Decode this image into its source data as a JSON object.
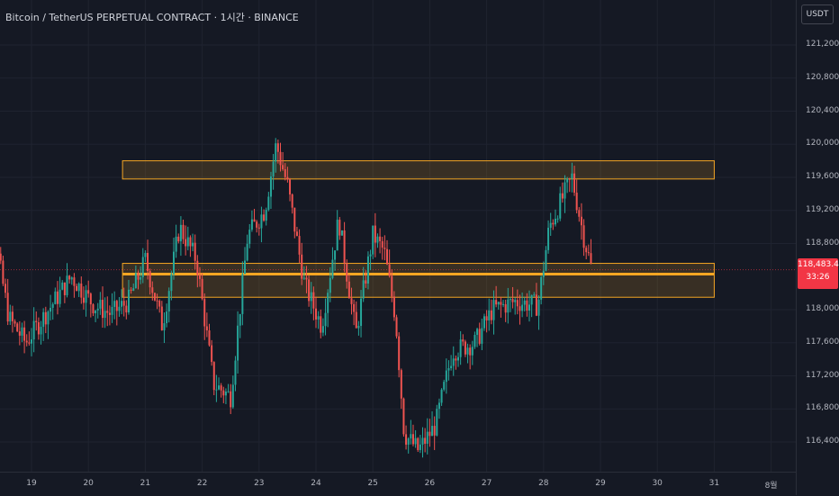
{
  "header": {
    "title": "Bitcoin / TetherUS PERPETUAL CONTRACT · 1시간 · BINANCE",
    "currency_button": "USDT"
  },
  "price_scale": {
    "labels": [
      {
        "text": "121,200.0",
        "value": 121200
      },
      {
        "text": "120,800.0",
        "value": 120800
      },
      {
        "text": "120,400.0",
        "value": 120400
      },
      {
        "text": "120,000.0",
        "value": 120000
      },
      {
        "text": "119,600.0",
        "value": 119600
      },
      {
        "text": "119,200.0",
        "value": 119200
      },
      {
        "text": "118,800.0",
        "value": 118800
      },
      {
        "text": "118,000.0",
        "value": 118000
      },
      {
        "text": "117,600.0",
        "value": 117600
      },
      {
        "text": "117,200.0",
        "value": 117200
      },
      {
        "text": "116,800.0",
        "value": 116800
      },
      {
        "text": "116,400.0",
        "value": 116400
      }
    ],
    "current_price": "118,483.4",
    "countdown": "33:26",
    "current_price_value": 118483.4
  },
  "time_scale": {
    "labels": [
      "19",
      "20",
      "21",
      "22",
      "23",
      "24",
      "25",
      "26",
      "27",
      "28",
      "29",
      "30",
      "31",
      "8월"
    ]
  },
  "colors": {
    "background": "#151924",
    "grid": "#1f2330",
    "up": "#26a69a",
    "down": "#ef5350",
    "zone_border": "#f5a623",
    "zone_fill": "rgba(245,166,35,0.16)",
    "current_price": "#f23645"
  },
  "zones": [
    {
      "name": "resistance-zone",
      "top": 119800,
      "bottom": 119580,
      "start_day": 20.6,
      "end_day": 31.0
    },
    {
      "name": "support-zone",
      "top": 118560,
      "bottom": 118150,
      "start_day": 20.6,
      "end_day": 31.0
    }
  ],
  "support_line": {
    "price": 118430
  },
  "chart_data": {
    "type": "candlestick",
    "symbol": "Bitcoin / TetherUS PERPETUAL CONTRACT",
    "interval": "1시간",
    "exchange": "BINANCE",
    "x_ticks": [
      "19",
      "20",
      "21",
      "22",
      "23",
      "24",
      "25",
      "26",
      "27",
      "28",
      "29",
      "30",
      "31",
      "8월"
    ],
    "y_ticks": [
      116400,
      116800,
      117200,
      117600,
      118000,
      118800,
      119200,
      119600,
      120000,
      120400,
      120800,
      121200
    ],
    "current_price": 118483.4,
    "price_path": [
      {
        "day": 18.0,
        "price": 120400
      },
      {
        "day": 18.15,
        "price": 120650
      },
      {
        "day": 18.3,
        "price": 119100
      },
      {
        "day": 18.6,
        "price": 117900
      },
      {
        "day": 18.9,
        "price": 117600
      },
      {
        "day": 19.3,
        "price": 118000
      },
      {
        "day": 19.7,
        "price": 118400
      },
      {
        "day": 20.1,
        "price": 118050
      },
      {
        "day": 20.4,
        "price": 117950
      },
      {
        "day": 20.7,
        "price": 118100
      },
      {
        "day": 21.0,
        "price": 118600
      },
      {
        "day": 21.3,
        "price": 117800
      },
      {
        "day": 21.6,
        "price": 119000
      },
      {
        "day": 21.9,
        "price": 118600
      },
      {
        "day": 22.2,
        "price": 117100
      },
      {
        "day": 22.5,
        "price": 116950
      },
      {
        "day": 22.8,
        "price": 118900
      },
      {
        "day": 23.1,
        "price": 119200
      },
      {
        "day": 23.3,
        "price": 120000
      },
      {
        "day": 23.5,
        "price": 119500
      },
      {
        "day": 23.8,
        "price": 118300
      },
      {
        "day": 24.1,
        "price": 117800
      },
      {
        "day": 24.4,
        "price": 119100
      },
      {
        "day": 24.7,
        "price": 117700
      },
      {
        "day": 25.0,
        "price": 118900
      },
      {
        "day": 25.2,
        "price": 118700
      },
      {
        "day": 25.4,
        "price": 117900
      },
      {
        "day": 25.55,
        "price": 116500
      },
      {
        "day": 25.8,
        "price": 116300
      },
      {
        "day": 26.1,
        "price": 116600
      },
      {
        "day": 26.4,
        "price": 117500
      },
      {
        "day": 26.8,
        "price": 117600
      },
      {
        "day": 27.1,
        "price": 118000
      },
      {
        "day": 27.5,
        "price": 118100
      },
      {
        "day": 27.9,
        "price": 118050
      },
      {
        "day": 28.1,
        "price": 119000
      },
      {
        "day": 28.3,
        "price": 119300
      },
      {
        "day": 28.5,
        "price": 119600
      },
      {
        "day": 28.7,
        "price": 118900
      },
      {
        "day": 28.85,
        "price": 118480
      }
    ]
  }
}
